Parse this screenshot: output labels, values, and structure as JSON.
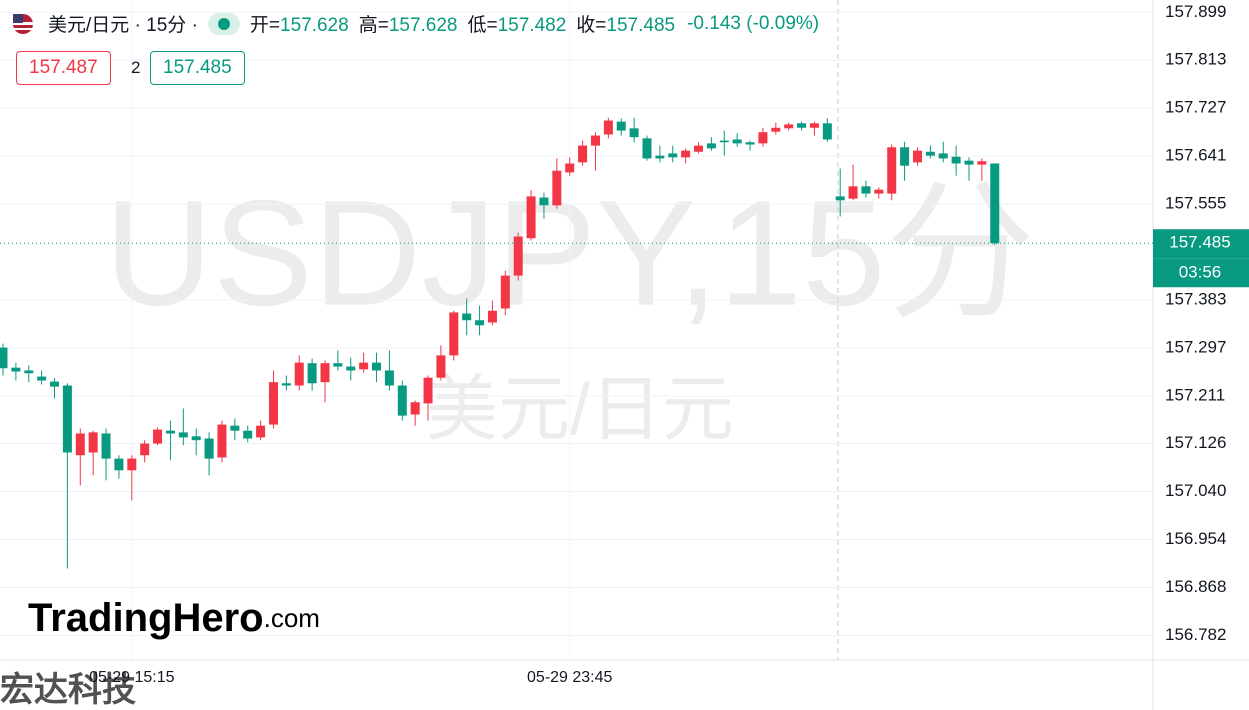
{
  "header": {
    "symbol": "美元/日元 · 15分 ·",
    "ohlc": [
      {
        "label": "开=",
        "value": "157.628"
      },
      {
        "label": "高=",
        "value": "157.628"
      },
      {
        "label": "低=",
        "value": "157.482"
      },
      {
        "label": "收=",
        "value": "157.485"
      }
    ],
    "change": "-0.143 (-0.09%)",
    "bid": "157.487",
    "spread": "2",
    "ask": "157.485"
  },
  "watermark": {
    "symbol": "USDJPY,15分",
    "name": "美元/日元"
  },
  "logo": {
    "name": "TradingHero",
    "suffix": ".com"
  },
  "corner_text": "宏达科技",
  "price_tag": {
    "price": "157.485",
    "countdown": "03:56"
  },
  "chart_data": {
    "type": "candlestick",
    "up_color": "#f23645",
    "down_color": "#089981",
    "categories": [
      null,
      null,
      null,
      null,
      null,
      null,
      null,
      null,
      null,
      null,
      "05-29 15:15",
      null,
      null,
      null,
      null,
      null,
      null,
      null,
      null,
      null,
      null,
      null,
      null,
      null,
      null,
      null,
      null,
      null,
      null,
      null,
      null,
      null,
      null,
      null,
      null,
      null,
      null,
      null,
      null,
      null,
      null,
      null,
      null,
      null,
      "05-29 23:45",
      null,
      null,
      null,
      null,
      null,
      null,
      null,
      null,
      null,
      null,
      null,
      null,
      null,
      null,
      null,
      null,
      null,
      null,
      null,
      null,
      null,
      null,
      null,
      null,
      null,
      null,
      null,
      null,
      null,
      null,
      null,
      null,
      null
    ],
    "open": [
      157.298,
      157.262,
      157.257,
      157.246,
      157.237,
      157.23,
      157.105,
      157.11,
      157.144,
      157.099,
      157.078,
      157.105,
      157.126,
      157.149,
      157.146,
      157.139,
      157.135,
      157.101,
      157.158,
      157.149,
      157.137,
      157.16,
      157.234,
      157.23,
      157.27,
      157.236,
      157.27,
      157.264,
      157.259,
      157.271,
      157.257,
      157.23,
      157.178,
      157.198,
      157.244,
      157.284,
      157.359,
      157.347,
      157.343,
      157.368,
      157.427,
      157.494,
      157.567,
      157.553,
      157.612,
      157.63,
      157.66,
      157.68,
      157.703,
      157.691,
      157.673,
      157.642,
      157.646,
      157.639,
      157.649,
      157.664,
      157.669,
      157.671,
      157.666,
      157.664,
      157.685,
      157.691,
      157.7,
      157.692,
      157.7,
      157.569,
      157.565,
      157.587,
      157.574,
      157.574,
      157.657,
      157.63,
      157.649,
      157.646,
      157.64,
      157.633,
      157.626,
      157.628
    ],
    "high": [
      157.305,
      157.271,
      157.266,
      157.257,
      157.243,
      157.234,
      157.153,
      157.149,
      157.153,
      157.105,
      157.105,
      157.132,
      157.155,
      157.167,
      157.189,
      157.153,
      157.146,
      157.167,
      157.171,
      157.158,
      157.167,
      157.257,
      157.248,
      157.284,
      157.278,
      157.275,
      157.293,
      157.28,
      157.289,
      157.289,
      157.293,
      157.239,
      157.203,
      157.248,
      157.302,
      157.364,
      157.386,
      157.373,
      157.382,
      157.436,
      157.504,
      157.58,
      157.576,
      157.637,
      157.639,
      157.669,
      157.684,
      157.71,
      157.709,
      157.71,
      157.678,
      157.66,
      157.66,
      157.655,
      157.666,
      157.675,
      157.687,
      157.682,
      157.669,
      157.692,
      157.701,
      157.701,
      157.703,
      157.703,
      157.709,
      157.619,
      157.626,
      157.597,
      157.585,
      157.662,
      157.667,
      157.657,
      157.66,
      157.667,
      157.66,
      157.639,
      157.637,
      157.628
    ],
    "low": [
      157.248,
      157.239,
      157.236,
      157.232,
      157.207,
      156.902,
      157.051,
      157.069,
      157.06,
      157.063,
      157.024,
      157.092,
      157.123,
      157.096,
      157.123,
      157.105,
      157.069,
      157.092,
      157.132,
      157.128,
      157.132,
      157.153,
      157.221,
      157.221,
      157.221,
      157.2,
      157.257,
      157.239,
      157.253,
      157.236,
      157.221,
      157.167,
      157.158,
      157.167,
      157.239,
      157.275,
      157.32,
      157.32,
      157.338,
      157.356,
      157.418,
      157.49,
      157.529,
      157.547,
      157.606,
      157.624,
      157.615,
      157.673,
      157.678,
      157.666,
      157.633,
      157.63,
      157.63,
      157.628,
      157.646,
      157.651,
      157.642,
      157.658,
      157.651,
      157.658,
      157.68,
      157.687,
      157.687,
      157.678,
      157.667,
      157.533,
      157.562,
      157.567,
      157.565,
      157.562,
      157.597,
      157.624,
      157.637,
      157.63,
      157.606,
      157.597,
      157.597,
      157.482
    ],
    "close": [
      157.261,
      157.255,
      157.252,
      157.239,
      157.228,
      157.11,
      157.144,
      157.146,
      157.099,
      157.078,
      157.099,
      157.126,
      157.151,
      157.144,
      157.137,
      157.132,
      157.099,
      157.16,
      157.149,
      157.135,
      157.158,
      157.236,
      157.23,
      157.271,
      157.234,
      157.27,
      157.264,
      157.257,
      157.271,
      157.257,
      157.23,
      157.176,
      157.2,
      157.244,
      157.284,
      157.361,
      157.347,
      157.338,
      157.364,
      157.427,
      157.497,
      157.569,
      157.553,
      157.615,
      157.628,
      157.66,
      157.678,
      157.705,
      157.687,
      157.675,
      157.637,
      157.637,
      157.639,
      157.651,
      157.66,
      157.655,
      157.666,
      157.664,
      157.662,
      157.684,
      157.692,
      157.698,
      157.692,
      157.7,
      157.671,
      157.562,
      157.587,
      157.574,
      157.581,
      157.657,
      157.624,
      157.651,
      157.642,
      157.637,
      157.628,
      157.626,
      157.632,
      157.485
    ],
    "ylim": [
      156.738,
      157.921
    ],
    "yticks": [
      157.899,
      157.813,
      157.727,
      157.641,
      157.555,
      157.383,
      157.297,
      157.211,
      157.126,
      {
        "value": 157.04,
        "label": "157.040"
      },
      156.954,
      156.868,
      156.782
    ],
    "grid": true
  }
}
